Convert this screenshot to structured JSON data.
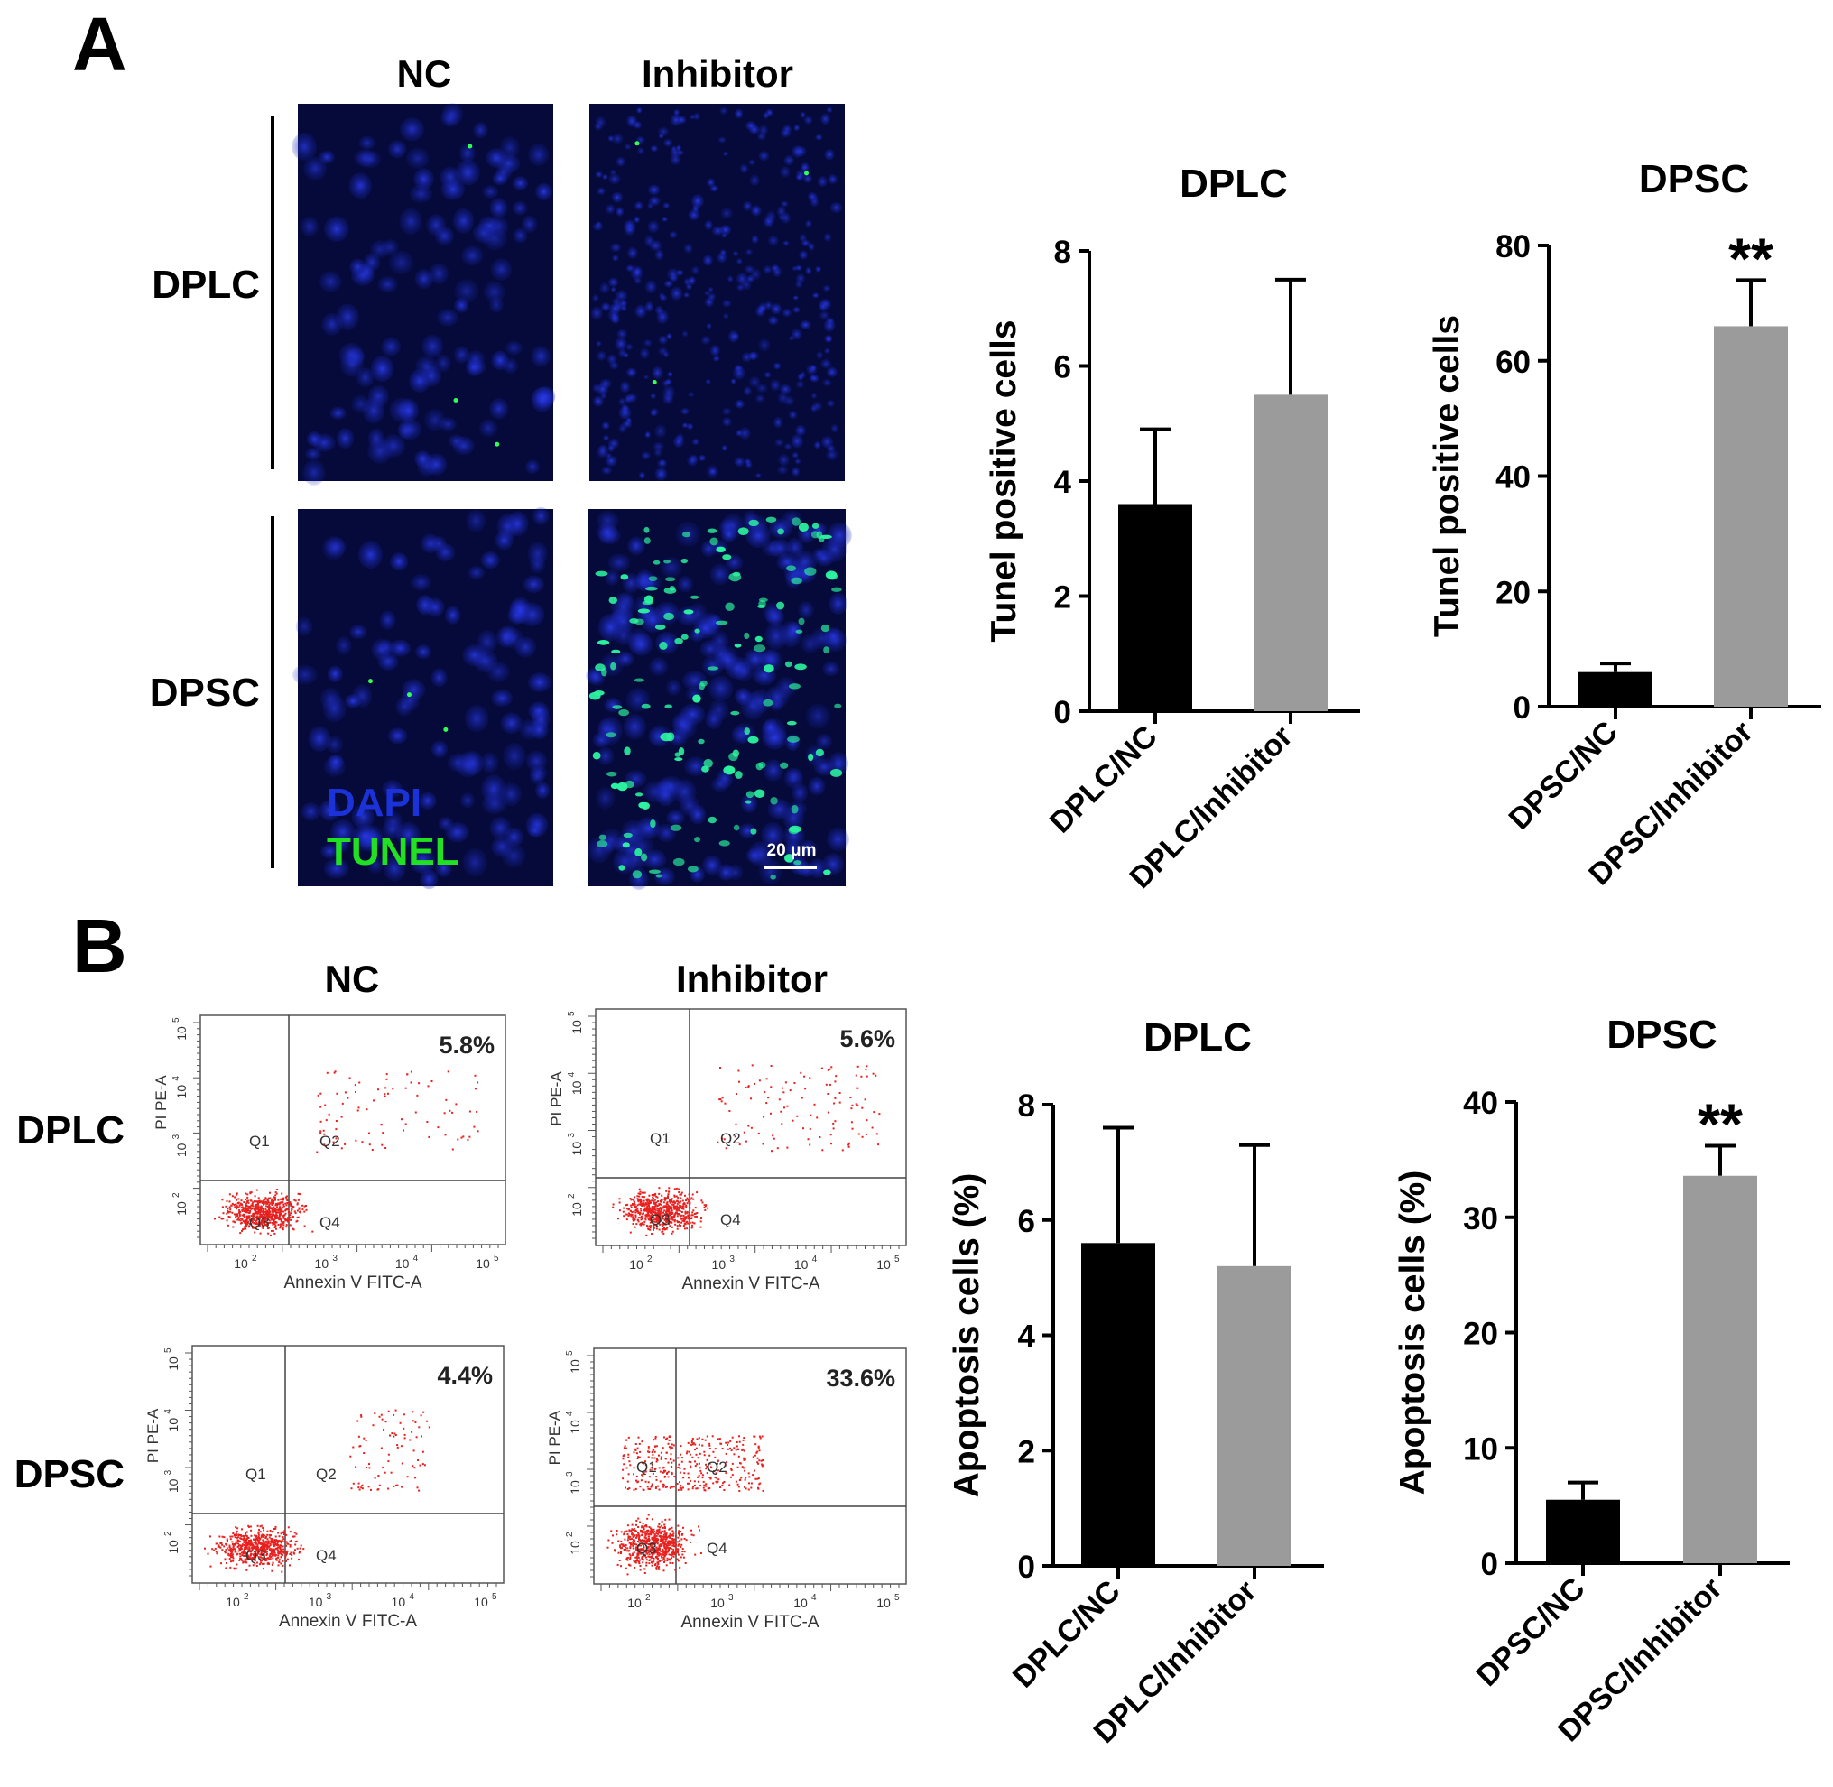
{
  "panel_a": {
    "letter": "A",
    "columns": [
      "NC",
      "Inhibitor"
    ],
    "rows": [
      "DPLC",
      "DPSC"
    ],
    "legend": [
      {
        "label": "DAPI",
        "color": "#1a32d8"
      },
      {
        "label": "TUNEL",
        "color": "#22e022"
      }
    ],
    "scalebar": "20 μm",
    "micrograph_tint": {
      "dapi": "#1a2bd0",
      "tunel": "#2cf5a0"
    }
  },
  "panel_b": {
    "letter": "B",
    "columns": [
      "NC",
      "Inhibitor"
    ],
    "rows": [
      "DPLC",
      "DPSC"
    ],
    "flow_plots": [
      {
        "row": "DPLC",
        "col": "NC",
        "percent": "5.8%"
      },
      {
        "row": "DPLC",
        "col": "Inhibitor",
        "percent": "5.6%"
      },
      {
        "row": "DPSC",
        "col": "NC",
        "percent": "4.4%"
      },
      {
        "row": "DPSC",
        "col": "Inhibitor",
        "percent": "33.6%"
      }
    ],
    "quadrants": [
      "Q1",
      "Q2",
      "Q3",
      "Q4"
    ],
    "flow_xlabel": "Annexin V FITC-A",
    "flow_ylabel": "PI PE-A",
    "flow_ticks": [
      "10",
      "10",
      "10",
      "10"
    ],
    "flow_exponents_x": [
      "2",
      "3",
      "4",
      "5"
    ],
    "flow_exponents_y": [
      "2",
      "3",
      "4",
      "5"
    ],
    "dot_color": "#e8201e"
  },
  "chart_data": [
    {
      "type": "bar",
      "title": "DPLC",
      "ylabel": "Tunel positive cells",
      "categories": [
        "DPLC/NC",
        "DPLC/Inhibitor"
      ],
      "values": [
        3.6,
        5.5
      ],
      "errors": [
        1.3,
        2.0
      ],
      "ylim": [
        0,
        8
      ],
      "yticks": [
        "0",
        "2",
        "4",
        "6",
        "8"
      ],
      "colors": [
        "#000000",
        "#9b9b9b"
      ],
      "significance": [
        "",
        ""
      ]
    },
    {
      "type": "bar",
      "title": "DPSC",
      "ylabel": "Tunel positive cells",
      "categories": [
        "DPSC/NC",
        "DPSC/Inhibitor"
      ],
      "values": [
        6.0,
        66.0
      ],
      "errors": [
        1.5,
        8.0
      ],
      "ylim": [
        0,
        80
      ],
      "yticks": [
        "0",
        "20",
        "40",
        "60",
        "80"
      ],
      "colors": [
        "#000000",
        "#9b9b9b"
      ],
      "significance": [
        "",
        "**"
      ]
    },
    {
      "type": "bar",
      "title": "DPLC",
      "ylabel": "Apoptosis cells (%)",
      "categories": [
        "DPLC/NC",
        "DPLC/Inhibitor"
      ],
      "values": [
        5.6,
        5.2
      ],
      "errors": [
        2.0,
        2.1
      ],
      "ylim": [
        0,
        8
      ],
      "yticks": [
        "0",
        "2",
        "4",
        "6",
        "8"
      ],
      "colors": [
        "#000000",
        "#9b9b9b"
      ],
      "significance": [
        "",
        ""
      ]
    },
    {
      "type": "bar",
      "title": "DPSC",
      "ylabel": "Apoptosis cells (%)",
      "categories": [
        "DPSC/NC",
        "DPSC/Inhibitor"
      ],
      "values": [
        5.5,
        33.6
      ],
      "errors": [
        1.5,
        2.6
      ],
      "ylim": [
        0,
        40
      ],
      "yticks": [
        "0",
        "10",
        "20",
        "30",
        "40"
      ],
      "colors": [
        "#000000",
        "#9b9b9b"
      ],
      "significance": [
        "",
        "**"
      ]
    }
  ]
}
